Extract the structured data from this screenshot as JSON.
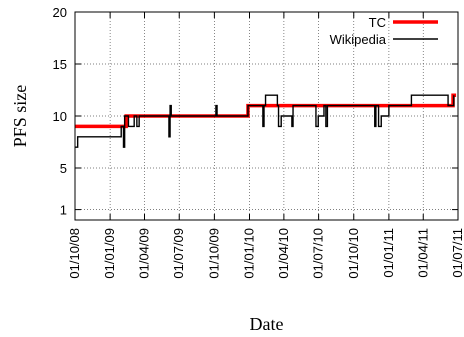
{
  "chart_data": {
    "type": "line",
    "title": "",
    "xlabel": "Date",
    "ylabel": "PFS size",
    "xlim": [
      "2008-10-01",
      "2011-07-01"
    ],
    "ylim": [
      0,
      20
    ],
    "yticks": [
      1,
      5,
      10,
      15,
      20
    ],
    "xticks": [
      {
        "date": "2008-10-01",
        "label": "01/10/08"
      },
      {
        "date": "2009-01-01",
        "label": "01/01/09"
      },
      {
        "date": "2009-04-01",
        "label": "01/04/09"
      },
      {
        "date": "2009-07-01",
        "label": "01/07/09"
      },
      {
        "date": "2009-10-01",
        "label": "01/10/09"
      },
      {
        "date": "2010-01-01",
        "label": "01/01/10"
      },
      {
        "date": "2010-04-01",
        "label": "01/04/10"
      },
      {
        "date": "2010-07-01",
        "label": "01/07/10"
      },
      {
        "date": "2010-10-01",
        "label": "01/10/10"
      },
      {
        "date": "2011-01-01",
        "label": "01/01/11"
      },
      {
        "date": "2011-04-01",
        "label": "01/04/11"
      },
      {
        "date": "2011-07-01",
        "label": "01/07/11"
      }
    ],
    "grid": true,
    "legend_position": "top-right",
    "series": [
      {
        "name": "TC",
        "color": "#ff0000",
        "style": "step",
        "points": [
          {
            "x": "2008-10-01",
            "y": 9
          },
          {
            "x": "2009-02-12",
            "y": 10
          },
          {
            "x": "2009-12-28",
            "y": 11
          },
          {
            "x": "2011-06-18",
            "y": 12
          },
          {
            "x": "2011-06-26",
            "y": 12
          }
        ]
      },
      {
        "name": "Wikipedia",
        "color": "#000000",
        "style": "step",
        "points": [
          {
            "x": "2008-10-01",
            "y": 7
          },
          {
            "x": "2008-10-08",
            "y": 8
          },
          {
            "x": "2009-01-30",
            "y": 9
          },
          {
            "x": "2009-02-05",
            "y": 7
          },
          {
            "x": "2009-02-08",
            "y": 10
          },
          {
            "x": "2009-02-18",
            "y": 9
          },
          {
            "x": "2009-03-05",
            "y": 10
          },
          {
            "x": "2009-03-12",
            "y": 9
          },
          {
            "x": "2009-03-18",
            "y": 10
          },
          {
            "x": "2009-06-04",
            "y": 8
          },
          {
            "x": "2009-06-07",
            "y": 11
          },
          {
            "x": "2009-06-10",
            "y": 10
          },
          {
            "x": "2009-10-05",
            "y": 11
          },
          {
            "x": "2009-10-08",
            "y": 10
          },
          {
            "x": "2009-12-28",
            "y": 11
          },
          {
            "x": "2010-02-05",
            "y": 9
          },
          {
            "x": "2010-02-08",
            "y": 11
          },
          {
            "x": "2010-02-12",
            "y": 12
          },
          {
            "x": "2010-03-15",
            "y": 11
          },
          {
            "x": "2010-03-18",
            "y": 9
          },
          {
            "x": "2010-03-25",
            "y": 10
          },
          {
            "x": "2010-04-22",
            "y": 9
          },
          {
            "x": "2010-04-25",
            "y": 11
          },
          {
            "x": "2010-06-24",
            "y": 9
          },
          {
            "x": "2010-06-30",
            "y": 10
          },
          {
            "x": "2010-07-15",
            "y": 11
          },
          {
            "x": "2010-07-20",
            "y": 9
          },
          {
            "x": "2010-07-24",
            "y": 11
          },
          {
            "x": "2010-11-25",
            "y": 9
          },
          {
            "x": "2010-11-28",
            "y": 11
          },
          {
            "x": "2010-12-05",
            "y": 9
          },
          {
            "x": "2010-12-12",
            "y": 10
          },
          {
            "x": "2011-01-01",
            "y": 11
          },
          {
            "x": "2011-03-01",
            "y": 12
          },
          {
            "x": "2011-06-05",
            "y": 11
          },
          {
            "x": "2011-06-20",
            "y": 12
          }
        ]
      }
    ]
  }
}
